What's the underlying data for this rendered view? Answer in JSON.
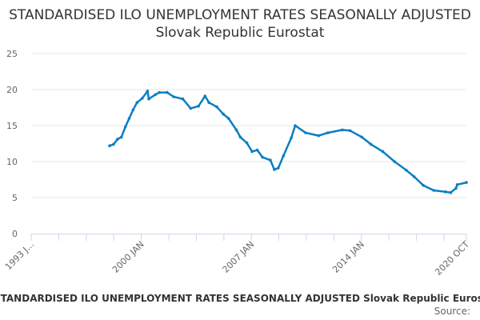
{
  "chart_data": {
    "type": "line",
    "title": "STANDARDISED ILO UNEMPLOYMENT RATES SEASONALLY ADJUSTED Slovak Republic Eurostat",
    "xlabel": "",
    "ylabel": "",
    "ylim": [
      0,
      25
    ],
    "xlim": [
      "1993-01",
      "2020-10"
    ],
    "yticks": [
      "0",
      "5",
      "10",
      "15",
      "20",
      "25"
    ],
    "xtick_labels": [
      "1993 J...",
      "2000 JAN",
      "2007 JAN",
      "2014 JAN",
      "2020 OCT"
    ],
    "grid": true,
    "legend": "none",
    "color": "#0a7fc4",
    "series": [
      {
        "x": [
          "1998-01",
          "1998-04",
          "1998-07",
          "1998-10",
          "1999-01",
          "1999-04",
          "1999-07",
          "1999-10",
          "2000-02",
          "2000-06",
          "2000-07",
          "2000-12",
          "2001-03",
          "2001-09",
          "2002-02",
          "2002-09",
          "2003-03",
          "2003-09",
          "2004-02",
          "2004-05",
          "2004-11",
          "2005-04",
          "2005-08",
          "2006-02",
          "2006-05",
          "2006-10",
          "2007-02",
          "2007-06",
          "2007-10",
          "2008-04",
          "2008-07",
          "2008-10",
          "2009-02",
          "2009-08",
          "2009-11",
          "2010-07",
          "2011-05",
          "2011-12",
          "2012-11",
          "2013-05",
          "2014-02",
          "2014-09",
          "2015-06",
          "2016-03",
          "2016-12",
          "2017-06",
          "2018-01",
          "2018-09",
          "2019-06",
          "2019-10",
          "2020-02",
          "2020-03",
          "2020-10"
        ],
        "values": [
          12.2,
          12.4,
          13.1,
          13.4,
          14.8,
          16.0,
          17.2,
          18.2,
          18.8,
          19.8,
          18.7,
          19.3,
          19.6,
          19.6,
          19.0,
          18.7,
          17.4,
          17.7,
          19.1,
          18.2,
          17.6,
          16.6,
          16.0,
          14.4,
          13.4,
          12.6,
          11.4,
          11.6,
          10.6,
          10.2,
          8.9,
          9.1,
          10.8,
          13.3,
          15.0,
          14.0,
          13.6,
          14.0,
          14.4,
          14.3,
          13.4,
          12.4,
          11.4,
          10.0,
          8.8,
          7.9,
          6.7,
          6.0,
          5.8,
          5.7,
          6.3,
          6.8,
          7.1
        ]
      }
    ]
  },
  "caption": "STANDARDISED ILO UNEMPLOYMENT RATES SEASONALLY ADJUSTED Slovak Republic Eurostat",
  "source_label": "Source:"
}
